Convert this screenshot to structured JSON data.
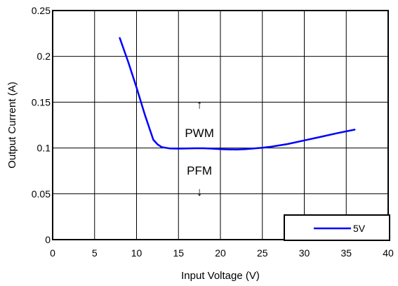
{
  "chart_data": {
    "type": "line",
    "xlabel": "Input Voltage (V)",
    "ylabel": "Output Current (A)",
    "xlim": [
      0,
      40
    ],
    "ylim": [
      0,
      0.25
    ],
    "x_ticks": [
      "0",
      "5",
      "10",
      "15",
      "20",
      "25",
      "30",
      "35",
      "40"
    ],
    "y_ticks": [
      "0",
      "0.05",
      "0.1",
      "0.15",
      "0.2",
      "0.25"
    ],
    "grid": true,
    "legend_position": "bottom-right",
    "series": [
      {
        "name": "5V",
        "color": "#0000ff",
        "x": [
          8,
          9,
          10,
          11,
          12,
          12.5,
          13,
          14,
          15,
          16,
          17,
          18,
          19,
          20,
          21,
          22,
          23,
          24,
          25,
          26,
          28,
          30,
          32,
          34,
          36
        ],
        "y": [
          0.22,
          0.194,
          0.166,
          0.136,
          0.109,
          0.104,
          0.101,
          0.0995,
          0.0993,
          0.0995,
          0.0997,
          0.0997,
          0.0993,
          0.0987,
          0.0985,
          0.0984,
          0.0987,
          0.0995,
          0.1003,
          0.1013,
          0.1043,
          0.1083,
          0.1123,
          0.1163,
          0.12
        ]
      }
    ],
    "annotations": [
      {
        "text": "↑",
        "x": 17.5,
        "y": 0.143
      },
      {
        "text": "PWM",
        "x": 17.5,
        "y": 0.112
      },
      {
        "text": "PFM",
        "x": 17.5,
        "y": 0.071
      },
      {
        "text": "↓",
        "x": 17.5,
        "y": 0.048
      }
    ]
  }
}
